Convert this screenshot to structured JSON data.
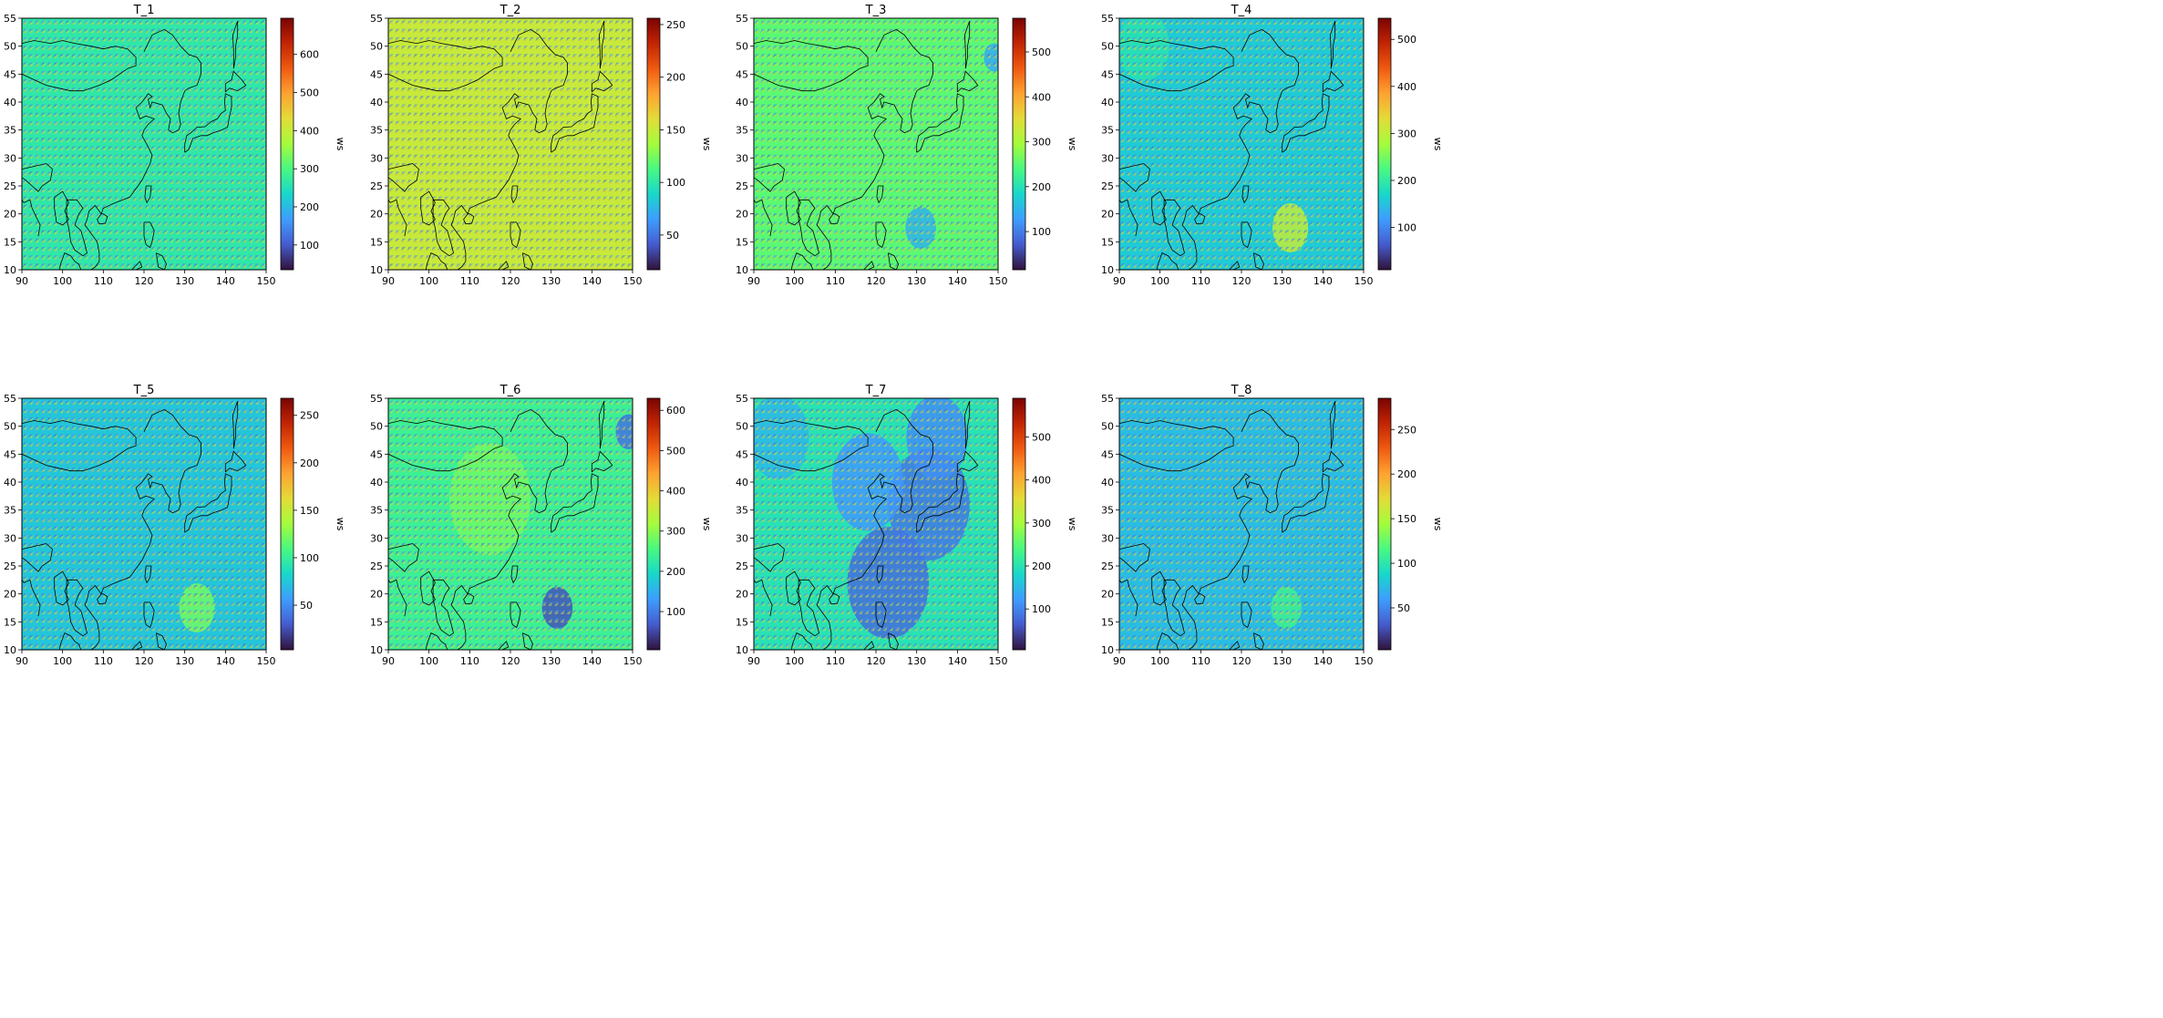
{
  "figure": {
    "panel_count": 8
  },
  "chart_data": [
    {
      "type": "heatmap",
      "title": "T_1",
      "colorbar_label": "ws",
      "colorbar_ticks": [
        100,
        200,
        300,
        400,
        500,
        600
      ],
      "colorbar_range": [
        35,
        695
      ],
      "xlim": [
        90,
        150
      ],
      "ylim": [
        10,
        55
      ],
      "xticks": [
        90,
        100,
        110,
        120,
        130,
        140,
        150
      ],
      "yticks": [
        10,
        15,
        20,
        25,
        30,
        35,
        40,
        45,
        50,
        55
      ],
      "colormap": "turbo",
      "base_value": 265,
      "patches": []
    },
    {
      "type": "heatmap",
      "title": "T_2",
      "colorbar_label": "ws",
      "colorbar_ticks": [
        50,
        100,
        150,
        200,
        250
      ],
      "colorbar_range": [
        17,
        256
      ],
      "xlim": [
        90,
        150
      ],
      "ylim": [
        10,
        55
      ],
      "xticks": [
        90,
        100,
        110,
        120,
        130,
        140,
        150
      ],
      "yticks": [
        10,
        15,
        20,
        25,
        30,
        35,
        40,
        45,
        50,
        55
      ],
      "colormap": "turbo",
      "base_value": 150,
      "patches": []
    },
    {
      "type": "heatmap",
      "title": "T_3",
      "colorbar_label": "ws",
      "colorbar_ticks": [
        100,
        200,
        300,
        400,
        500
      ],
      "colorbar_range": [
        15,
        575
      ],
      "xlim": [
        90,
        150
      ],
      "ylim": [
        10,
        55
      ],
      "xticks": [
        90,
        100,
        110,
        120,
        130,
        140,
        150
      ],
      "yticks": [
        10,
        15,
        20,
        25,
        30,
        35,
        40,
        45,
        50,
        55
      ],
      "colormap": "turbo",
      "base_value": 250,
      "patches": [
        {
          "lon": 131,
          "lat": 17.5,
          "r": 3,
          "value": 150
        },
        {
          "lon": 149,
          "lat": 48,
          "r": 2,
          "value": 140
        }
      ]
    },
    {
      "type": "heatmap",
      "title": "T_4",
      "colorbar_label": "ws",
      "colorbar_ticks": [
        100,
        200,
        300,
        400,
        500
      ],
      "colorbar_range": [
        10,
        545
      ],
      "xlim": [
        90,
        150
      ],
      "ylim": [
        10,
        55
      ],
      "xticks": [
        90,
        100,
        110,
        120,
        130,
        140,
        150
      ],
      "yticks": [
        10,
        15,
        20,
        25,
        30,
        35,
        40,
        45,
        50,
        55
      ],
      "colormap": "turbo",
      "base_value": 160,
      "patches": [
        {
          "lon": 132,
          "lat": 17.5,
          "r": 3.5,
          "value": 300
        },
        {
          "lon": 96,
          "lat": 50,
          "r": 5,
          "value": 190
        }
      ]
    },
    {
      "type": "heatmap",
      "title": "T_5",
      "colorbar_label": "ws",
      "colorbar_ticks": [
        50,
        100,
        150,
        200,
        250
      ],
      "colorbar_range": [
        3,
        268
      ],
      "xlim": [
        90,
        150
      ],
      "ylim": [
        10,
        55
      ],
      "xticks": [
        90,
        100,
        110,
        120,
        130,
        140,
        150
      ],
      "yticks": [
        10,
        15,
        20,
        25,
        30,
        35,
        40,
        45,
        50,
        55
      ],
      "colormap": "turbo",
      "base_value": 75,
      "patches": [
        {
          "lon": 133,
          "lat": 17.5,
          "r": 3.5,
          "value": 120
        }
      ]
    },
    {
      "type": "heatmap",
      "title": "T_6",
      "colorbar_label": "ws",
      "colorbar_ticks": [
        100,
        200,
        300,
        400,
        500,
        600
      ],
      "colorbar_range": [
        5,
        630
      ],
      "xlim": [
        90,
        150
      ],
      "ylim": [
        10,
        55
      ],
      "xticks": [
        90,
        100,
        110,
        120,
        130,
        140,
        150
      ],
      "yticks": [
        10,
        15,
        20,
        25,
        30,
        35,
        40,
        45,
        50,
        55
      ],
      "colormap": "turbo",
      "base_value": 240,
      "patches": [
        {
          "lon": 131.5,
          "lat": 17.5,
          "r": 3,
          "value": 60
        },
        {
          "lon": 149,
          "lat": 49,
          "r": 2.5,
          "value": 90
        },
        {
          "lon": 115,
          "lat": 37,
          "r": 8,
          "value": 280
        }
      ]
    },
    {
      "type": "heatmap",
      "title": "T_7",
      "colorbar_label": "ws",
      "colorbar_ticks": [
        100,
        200,
        300,
        400,
        500
      ],
      "colorbar_range": [
        5,
        590
      ],
      "xlim": [
        90,
        150
      ],
      "ylim": [
        10,
        55
      ],
      "xticks": [
        90,
        100,
        110,
        120,
        130,
        140,
        150
      ],
      "yticks": [
        10,
        15,
        20,
        25,
        30,
        35,
        40,
        45,
        50,
        55
      ],
      "colormap": "turbo",
      "base_value": 200,
      "patches": [
        {
          "lon": 123,
          "lat": 22,
          "r": 8,
          "value": 80
        },
        {
          "lon": 133,
          "lat": 36,
          "r": 8,
          "value": 90
        },
        {
          "lon": 118,
          "lat": 40,
          "r": 7,
          "value": 120
        },
        {
          "lon": 135,
          "lat": 48,
          "r": 6,
          "value": 110
        },
        {
          "lon": 96,
          "lat": 48,
          "r": 6,
          "value": 150
        }
      ]
    },
    {
      "type": "heatmap",
      "title": "T_8",
      "colorbar_label": "ws",
      "colorbar_ticks": [
        50,
        100,
        150,
        200,
        250
      ],
      "colorbar_range": [
        3,
        285
      ],
      "xlim": [
        90,
        150
      ],
      "ylim": [
        10,
        55
      ],
      "xticks": [
        90,
        100,
        110,
        120,
        130,
        140,
        150
      ],
      "yticks": [
        10,
        15,
        20,
        25,
        30,
        35,
        40,
        45,
        50,
        55
      ],
      "colormap": "turbo",
      "base_value": 75,
      "patches": [
        {
          "lon": 131,
          "lat": 17.5,
          "r": 3,
          "value": 110
        }
      ]
    }
  ]
}
